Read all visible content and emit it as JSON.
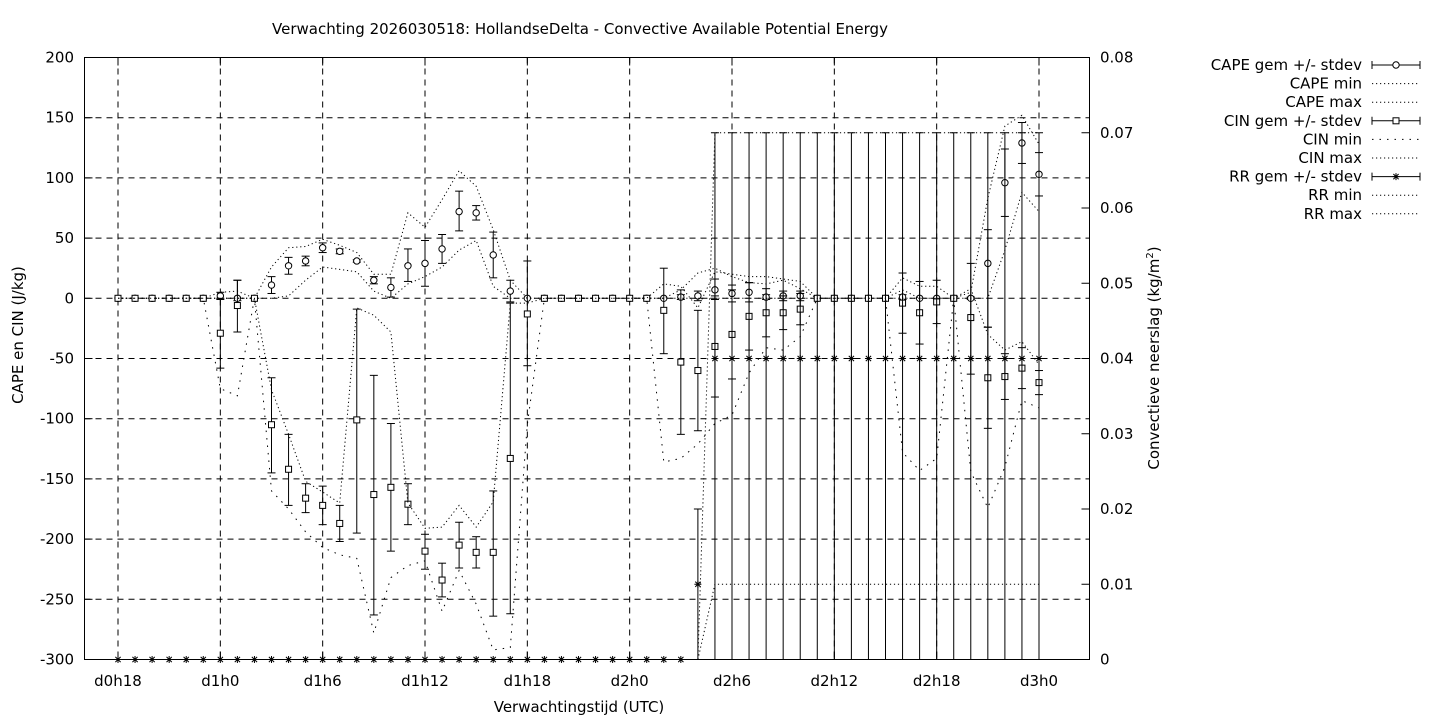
{
  "chart_data": {
    "type": "errorbar",
    "title": "Verwachting 2026030518: HollandseDelta - Convective Available Potential Energy",
    "xlabel": "Verwachtingstijd (UTC)",
    "ylabel": "CAPE en CIN (J/kg)",
    "y2label": "Convectieve neerslag (kg/m",
    "y2label_sup": "2",
    "y2label_end": ")",
    "xlim": [
      18,
      75
    ],
    "ylim": [
      -300,
      200
    ],
    "y2lim": [
      0,
      0.08
    ],
    "x_ticks": [
      {
        "x": 18,
        "label": "d0h18"
      },
      {
        "x": 24,
        "label": "d1h0"
      },
      {
        "x": 30,
        "label": "d1h6"
      },
      {
        "x": 36,
        "label": "d1h12"
      },
      {
        "x": 42,
        "label": "d1h18"
      },
      {
        "x": 48,
        "label": "d2h0"
      },
      {
        "x": 54,
        "label": "d2h6"
      },
      {
        "x": 60,
        "label": "d2h12"
      },
      {
        "x": 66,
        "label": "d2h18"
      },
      {
        "x": 72,
        "label": "d3h0"
      }
    ],
    "y_ticks": [
      200,
      150,
      100,
      50,
      0,
      -50,
      -100,
      -150,
      -200,
      -250,
      -300
    ],
    "y_tick_labels": [
      "200",
      "150",
      "100",
      "50",
      "0",
      "-50",
      "-100",
      "-150",
      "-200",
      "-250",
      "-300"
    ],
    "y2_ticks": [
      0.08,
      0.07,
      0.06,
      0.05,
      0.04,
      0.03,
      0.02,
      0.01,
      0
    ],
    "y2_tick_labels": [
      "0.08",
      "0.07",
      "0.06",
      "0.05",
      "0.04",
      "0.03",
      "0.02",
      "0.01",
      "0"
    ],
    "grid": true,
    "legend_position": "outside-right",
    "legend": [
      {
        "label": "CAPE gem +/- stdev",
        "style": "errorbar-circle"
      },
      {
        "label": "CAPE min",
        "style": "dotted"
      },
      {
        "label": "CAPE max",
        "style": "dotted"
      },
      {
        "label": "CIN gem +/- stdev",
        "style": "errorbar-square"
      },
      {
        "label": "CIN min",
        "style": "sparse-dotted"
      },
      {
        "label": "CIN max",
        "style": "dotted"
      },
      {
        "label": "RR gem +/- stdev",
        "style": "errorbar-star"
      },
      {
        "label": "RR min",
        "style": "dotted"
      },
      {
        "label": "RR max",
        "style": "dotted"
      }
    ],
    "x": [
      18,
      19,
      20,
      21,
      22,
      23,
      24,
      25,
      26,
      27,
      28,
      29,
      30,
      31,
      32,
      33,
      34,
      35,
      36,
      37,
      38,
      39,
      40,
      41,
      42,
      43,
      44,
      45,
      46,
      47,
      48,
      49,
      50,
      51,
      52,
      53,
      54,
      55,
      56,
      57,
      58,
      59,
      60,
      61,
      62,
      63,
      64,
      65,
      66,
      67,
      68,
      69,
      70,
      71,
      72
    ],
    "series": [
      {
        "name": "CAPE gem +/- stdev",
        "marker": "circle",
        "axis": "y",
        "mean": [
          0,
          0,
          0,
          0,
          0,
          0,
          2,
          0,
          0,
          11,
          27,
          31,
          42,
          39,
          31,
          15,
          9,
          27,
          29,
          41,
          72,
          71,
          36,
          6,
          0,
          0,
          0,
          0,
          0,
          0,
          0,
          0,
          0,
          1,
          2,
          7,
          4,
          5,
          1,
          2,
          2,
          0,
          0,
          0,
          0,
          0,
          1,
          0,
          0,
          0,
          0,
          29,
          96,
          129,
          103
        ],
        "lower": [
          0,
          0,
          0,
          0,
          0,
          0,
          -1,
          -2,
          0,
          4,
          20,
          27,
          38,
          37,
          30,
          12,
          1,
          14,
          10,
          29,
          56,
          65,
          17,
          -3,
          0,
          0,
          0,
          0,
          0,
          0,
          0,
          0,
          0,
          -1,
          -2,
          -1,
          -3,
          -3,
          -1,
          -2,
          -2,
          0,
          0,
          0,
          0,
          0,
          -1,
          0,
          0,
          0,
          -1,
          -24,
          68,
          112,
          85
        ],
        "upper": [
          0,
          0,
          0,
          0,
          0,
          0,
          5,
          15,
          0,
          18,
          34,
          35,
          46,
          41,
          32,
          18,
          17,
          41,
          48,
          53,
          89,
          77,
          55,
          15,
          0,
          0,
          0,
          0,
          0,
          0,
          0,
          0,
          0,
          3,
          6,
          16,
          11,
          13,
          3,
          6,
          6,
          0,
          0,
          0,
          0,
          0,
          3,
          0,
          0,
          0,
          1,
          57,
          124,
          146,
          121
        ]
      },
      {
        "name": "CAPE min",
        "style": "dotted",
        "axis": "y",
        "values": [
          0,
          0,
          0,
          0,
          0,
          0,
          0,
          0,
          0,
          0,
          2,
          15,
          26,
          24,
          22,
          6,
          0,
          12,
          18,
          26,
          40,
          48,
          10,
          0,
          0,
          0,
          0,
          0,
          0,
          0,
          0,
          0,
          0,
          0,
          0,
          0,
          0,
          0,
          0,
          0,
          0,
          0,
          0,
          0,
          0,
          0,
          0,
          0,
          0,
          0,
          0,
          0,
          40,
          88,
          72
        ]
      },
      {
        "name": "CAPE max",
        "style": "dotted",
        "axis": "y",
        "values": [
          0,
          0,
          0,
          0,
          0,
          0,
          5,
          6,
          0,
          26,
          42,
          43,
          49,
          44,
          38,
          20,
          20,
          71,
          59,
          82,
          106,
          93,
          57,
          15,
          0,
          0,
          0,
          0,
          0,
          0,
          0,
          0,
          0,
          7,
          21,
          25,
          18,
          13,
          12,
          15,
          8,
          0,
          0,
          0,
          0,
          0,
          7,
          0,
          0,
          0,
          5,
          83,
          143,
          152,
          128
        ]
      },
      {
        "name": "CIN gem +/- stdev",
        "marker": "square",
        "axis": "y",
        "mean": [
          0,
          0,
          0,
          0,
          0,
          0,
          -29,
          -6,
          0,
          -105,
          -142,
          -166,
          -172,
          -187,
          -101,
          -163,
          -157,
          -171,
          -210,
          -234,
          -205,
          -211,
          -211,
          -133,
          -13,
          0,
          0,
          0,
          0,
          0,
          0,
          0,
          -10,
          -53,
          -60,
          -40,
          -30,
          -15,
          -12,
          -12,
          -9,
          0,
          0,
          0,
          0,
          0,
          -4,
          -12,
          -3,
          0,
          -16,
          -66,
          -65,
          -58,
          -70
        ],
        "lower": [
          0,
          0,
          0,
          0,
          0,
          0,
          -58,
          -28,
          0,
          -145,
          -172,
          -178,
          -188,
          -202,
          -195,
          -263,
          -210,
          -188,
          -225,
          -248,
          -224,
          -224,
          -264,
          -262,
          -56,
          0,
          0,
          0,
          0,
          0,
          0,
          0,
          -46,
          -113,
          -110,
          -82,
          -67,
          -43,
          -32,
          -26,
          -22,
          0,
          0,
          0,
          0,
          0,
          -29,
          -38,
          -21,
          0,
          -63,
          -108,
          -84,
          -75,
          -80
        ],
        "upper": [
          0,
          0,
          0,
          0,
          0,
          0,
          0,
          15,
          0,
          -66,
          -113,
          -154,
          -156,
          -172,
          -9,
          -64,
          -104,
          -154,
          -196,
          -220,
          -186,
          -198,
          -160,
          -4,
          31,
          0,
          0,
          0,
          0,
          0,
          0,
          0,
          25,
          7,
          -10,
          2,
          7,
          13,
          8,
          2,
          4,
          0,
          0,
          0,
          0,
          0,
          21,
          14,
          15,
          0,
          29,
          -24,
          -46,
          -41,
          -60
        ]
      },
      {
        "name": "CIN min",
        "style": "sparse-dotted",
        "axis": "y",
        "values": [
          0,
          0,
          0,
          0,
          0,
          0,
          -75,
          -81,
          0,
          -160,
          -175,
          -194,
          -207,
          -213,
          -216,
          -278,
          -232,
          -222,
          -218,
          -260,
          -226,
          -254,
          -292,
          -290,
          -105,
          0,
          0,
          0,
          0,
          0,
          0,
          0,
          -136,
          -133,
          -121,
          -104,
          -97,
          -62,
          -41,
          -43,
          -32,
          0,
          0,
          0,
          0,
          0,
          -128,
          -143,
          -133,
          0,
          -144,
          -174,
          -140,
          -85,
          -91
        ]
      },
      {
        "name": "CIN max",
        "style": "dotted",
        "axis": "y",
        "values": [
          0,
          0,
          0,
          0,
          0,
          0,
          0,
          0,
          0,
          -76,
          -113,
          -152,
          -161,
          -170,
          -8,
          -14,
          -28,
          -170,
          -191,
          -190,
          -172,
          -190,
          -169,
          -4,
          -4,
          0,
          0,
          0,
          0,
          0,
          0,
          0,
          12,
          10,
          -8,
          22,
          20,
          18,
          18,
          16,
          14,
          0,
          0,
          0,
          0,
          0,
          17,
          10,
          10,
          0,
          8,
          -30,
          -43,
          -36,
          -55
        ]
      },
      {
        "name": "RR gem +/- stdev",
        "marker": "star",
        "axis": "y2",
        "mean": [
          0,
          0,
          0,
          0,
          0,
          0,
          0,
          0,
          0,
          0,
          0,
          0,
          0,
          0,
          0,
          0,
          0,
          0,
          0,
          0,
          0,
          0,
          0,
          0,
          0,
          0,
          0,
          0,
          0,
          0,
          0,
          0,
          0,
          0,
          0.01,
          0.04,
          0.04,
          0.04,
          0.04,
          0.04,
          0.04,
          0.04,
          0.04,
          0.04,
          0.04,
          0.04,
          0.04,
          0.04,
          0.04,
          0.04,
          0.04,
          0.04,
          0.04,
          0.04,
          0.04
        ],
        "lower": [
          0,
          0,
          0,
          0,
          0,
          0,
          0,
          0,
          0,
          0,
          0,
          0,
          0,
          0,
          0,
          0,
          0,
          0,
          0,
          0,
          0,
          0,
          0,
          0,
          0,
          0,
          0,
          0,
          0,
          0,
          0,
          0,
          0,
          0,
          0,
          0.0,
          0.0,
          0.0,
          0.0,
          0.0,
          0.0,
          0.0,
          0.0,
          0.0,
          0.0,
          0.0,
          0.0,
          0.0,
          0.0,
          0.0,
          0.0,
          0.0,
          0.0,
          0.0,
          0.0
        ],
        "upper": [
          0,
          0,
          0,
          0,
          0,
          0,
          0,
          0,
          0,
          0,
          0,
          0,
          0,
          0,
          0,
          0,
          0,
          0,
          0,
          0,
          0,
          0,
          0,
          0,
          0,
          0,
          0,
          0,
          0,
          0,
          0,
          0,
          0,
          0,
          0.02,
          0.07,
          0.07,
          0.07,
          0.07,
          0.07,
          0.07,
          0.07,
          0.07,
          0.07,
          0.07,
          0.07,
          0.07,
          0.07,
          0.07,
          0.07,
          0.07,
          0.07,
          0.07,
          0.07,
          0.07
        ]
      },
      {
        "name": "RR min",
        "style": "dotted",
        "axis": "y2",
        "values": [
          0,
          0,
          0,
          0,
          0,
          0,
          0,
          0,
          0,
          0,
          0,
          0,
          0,
          0,
          0,
          0,
          0,
          0,
          0,
          0,
          0,
          0,
          0,
          0,
          0,
          0,
          0,
          0,
          0,
          0,
          0,
          0,
          0,
          0,
          0,
          0.01,
          0.01,
          0.01,
          0.01,
          0.01,
          0.01,
          0.01,
          0.01,
          0.01,
          0.01,
          0.01,
          0.01,
          0.01,
          0.01,
          0.01,
          0.01,
          0.01,
          0.01,
          0.01,
          0.01
        ]
      },
      {
        "name": "RR max",
        "style": "dotted",
        "axis": "y2",
        "values": [
          0,
          0,
          0,
          0,
          0,
          0,
          0,
          0,
          0,
          0,
          0,
          0,
          0,
          0,
          0,
          0,
          0,
          0,
          0,
          0,
          0,
          0,
          0,
          0,
          0,
          0,
          0,
          0,
          0,
          0,
          0,
          0,
          0,
          0,
          0,
          0.07,
          0.07,
          0.07,
          0.07,
          0.07,
          0.07,
          0.07,
          0.07,
          0.07,
          0.07,
          0.07,
          0.07,
          0.07,
          0.07,
          0.07,
          0.07,
          0.07,
          0.07,
          0.07,
          0.07
        ]
      }
    ]
  }
}
